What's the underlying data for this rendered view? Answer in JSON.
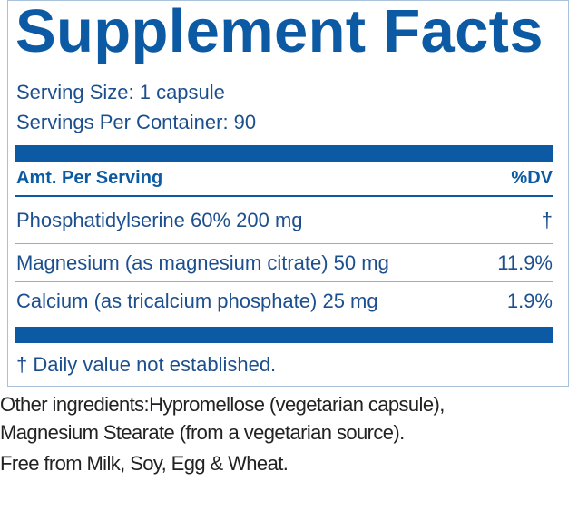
{
  "title": "Supplement Facts",
  "serving_size": "Serving Size: 1 capsule",
  "servings_per_container": "Servings Per Container: 90",
  "table": {
    "header": [
      "Amt. Per Serving",
      "%DV"
    ],
    "rows": [
      [
        "Phosphatidylserine 60% 200 mg",
        "†"
      ],
      [
        "Magnesium (as magnesium citrate) 50 mg",
        "11.9%"
      ],
      [
        "Calcium (as tricalcium phosphate) 25 mg",
        "1.9%"
      ]
    ]
  },
  "footnote": "† Daily value not established.",
  "other_ingredients": [
    "Other ingredients:Hypromellose (vegetarian capsule),",
    "Magnesium Stearate (from a vegetarian source).",
    "Free from Milk, Soy, Egg & Wheat."
  ]
}
